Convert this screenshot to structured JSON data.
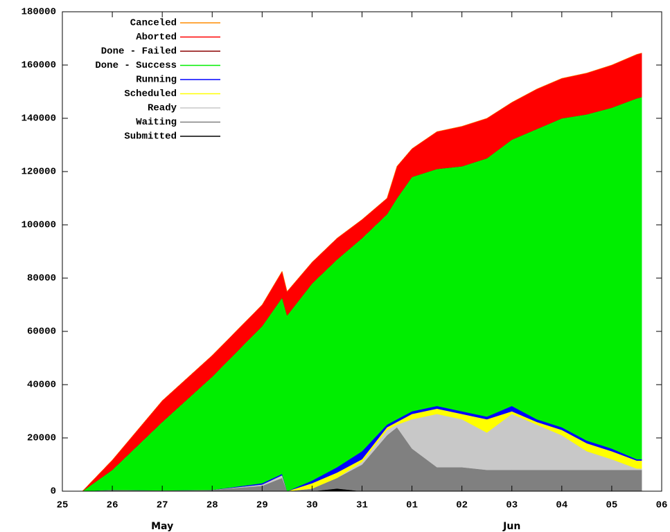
{
  "chart_data": {
    "type": "stacked-area",
    "xlim": [
      0,
      12
    ],
    "xticks": [
      {
        "value": 0,
        "label": "25"
      },
      {
        "value": 1,
        "label": "26"
      },
      {
        "value": 2,
        "label": "27"
      },
      {
        "value": 3,
        "label": "28"
      },
      {
        "value": 4,
        "label": "29"
      },
      {
        "value": 5,
        "label": "30"
      },
      {
        "value": 6,
        "label": "31"
      },
      {
        "value": 7,
        "label": "01"
      },
      {
        "value": 8,
        "label": "02"
      },
      {
        "value": 9,
        "label": "03"
      },
      {
        "value": 10,
        "label": "04"
      },
      {
        "value": 11,
        "label": "05"
      },
      {
        "value": 12,
        "label": "06"
      }
    ],
    "month_labels": [
      {
        "value": 2,
        "label": "May"
      },
      {
        "value": 9,
        "label": "Jun"
      }
    ],
    "ylim": [
      0,
      180000
    ],
    "yticks": [
      0,
      20000,
      40000,
      60000,
      80000,
      100000,
      120000,
      140000,
      160000,
      180000
    ],
    "legend": "top-left",
    "x": [
      0.4,
      1,
      2,
      3,
      4,
      4.4,
      4.5,
      5,
      5.5,
      6,
      6.5,
      6.7,
      7,
      7.5,
      8,
      8.5,
      9,
      9.5,
      10,
      10.5,
      11,
      11.5,
      11.6
    ],
    "series": [
      {
        "name": "Submitted",
        "color": "#000000",
        "values": [
          0,
          0,
          0,
          0,
          0,
          0,
          0,
          0,
          1000,
          0,
          0,
          0,
          0,
          0,
          0,
          0,
          0,
          0,
          0,
          0,
          0,
          0,
          0
        ]
      },
      {
        "name": "Waiting",
        "color": "#808080",
        "values": [
          0,
          500,
          300,
          500,
          2000,
          5000,
          0,
          1000,
          4000,
          10000,
          21000,
          24000,
          16000,
          9000,
          9000,
          8000,
          8000,
          8000,
          8000,
          8000,
          8000,
          8000,
          8000
        ]
      },
      {
        "name": "Ready",
        "color": "#c8c8c8",
        "values": [
          0,
          0,
          0,
          0,
          500,
          1000,
          0,
          0,
          0,
          1000,
          2000,
          1000,
          11000,
          20000,
          18000,
          14000,
          21000,
          17000,
          13000,
          7000,
          4000,
          500,
          500
        ]
      },
      {
        "name": "Scheduled",
        "color": "#ffff00",
        "values": [
          0,
          0,
          0,
          0,
          0,
          0,
          0,
          2000,
          2000,
          1000,
          1000,
          1000,
          2000,
          2000,
          2000,
          5000,
          1000,
          1000,
          2000,
          3000,
          3000,
          3000,
          3000
        ]
      },
      {
        "name": "Running",
        "color": "#0000ff",
        "values": [
          0,
          0,
          0,
          0,
          500,
          500,
          0,
          1000,
          2000,
          3000,
          1000,
          1000,
          1000,
          1000,
          1000,
          1000,
          2000,
          1000,
          1000,
          1000,
          1000,
          500,
          500
        ]
      },
      {
        "name": "Done - Success",
        "color": "#00ee00",
        "values": [
          0,
          7500,
          25700,
          42500,
          59000,
          66200,
          66000,
          74000,
          78000,
          80000,
          79000,
          83000,
          88000,
          89000,
          92000,
          97000,
          100000,
          109000,
          116000,
          122500,
          128000,
          135500,
          136000
        ]
      },
      {
        "name": "Done - Failed",
        "color": "#8b0000",
        "values": [
          0,
          0,
          0,
          0,
          0,
          0,
          0,
          0,
          0,
          0,
          0,
          0,
          0,
          0,
          0,
          0,
          0,
          0,
          0,
          0,
          0,
          0,
          0
        ]
      },
      {
        "name": "Aborted",
        "color": "#ff0000",
        "values": [
          0,
          3700,
          8000,
          8000,
          8000,
          9900,
          9000,
          8000,
          8000,
          7000,
          6000,
          12000,
          10600,
          14000,
          15000,
          15000,
          14000,
          15000,
          15000,
          15500,
          16000,
          16500,
          16500
        ]
      },
      {
        "name": "Canceled",
        "color": "#ff8c00",
        "values": [
          0,
          0,
          0,
          0,
          0,
          0,
          0,
          0,
          0,
          0,
          0,
          0,
          0,
          0,
          0,
          0,
          0,
          0,
          0,
          0,
          0,
          0,
          0
        ]
      }
    ]
  }
}
